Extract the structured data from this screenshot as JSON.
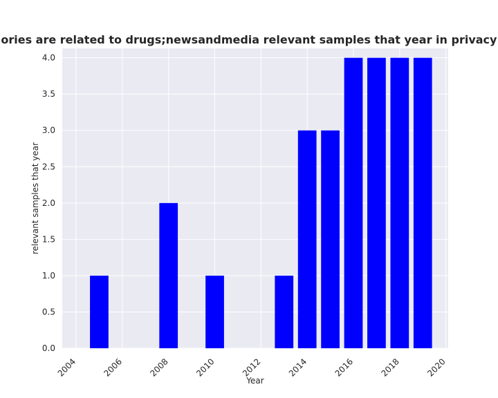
{
  "chart_data": {
    "type": "bar",
    "title": "n categories are related to drugs;newsandmedia relevant samples that year in privacy policies l",
    "xlabel": "Year",
    "ylabel": "relevant samples that year",
    "x": [
      2005,
      2008,
      2010,
      2013,
      2014,
      2015,
      2016,
      2017,
      2018,
      2019
    ],
    "values": [
      1,
      2,
      1,
      1,
      3,
      3,
      4,
      4,
      4,
      4
    ],
    "xlim": [
      2003.4,
      2020.1
    ],
    "ylim": [
      0,
      4.13
    ],
    "xticks": [
      2004,
      2006,
      2008,
      2010,
      2012,
      2014,
      2016,
      2018,
      2020
    ],
    "yticks": [
      "0.0",
      "0.5",
      "1.0",
      "1.5",
      "2.0",
      "2.5",
      "3.0",
      "3.5",
      "4.0"
    ],
    "grid": true,
    "bar_color": "#0000ff",
    "background_color": "#eaeaf2"
  }
}
